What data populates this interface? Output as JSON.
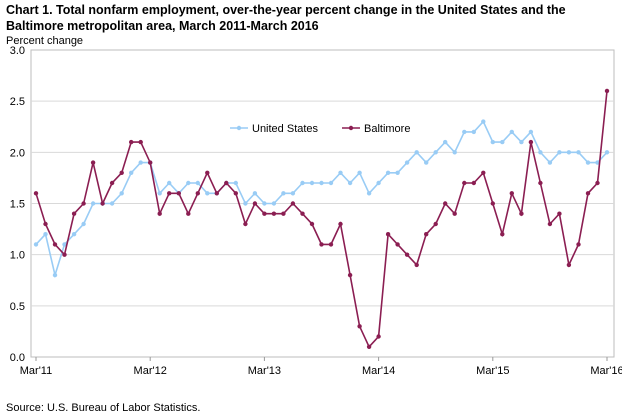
{
  "chart_title_line1": "Chart 1.  Total nonfarm employment, over-the-year percent change in the United States and the",
  "chart_title_line2": "Baltimore metropolitan area, March 2011-March 2016",
  "source": "Source: U.S. Bureau of Labor Statistics.",
  "chart_data": {
    "type": "line",
    "title": "Chart 1.  Total nonfarm employment, over-the-year percent change in the United States and the Baltimore metropolitan area, March 2011-March 2016",
    "ylabel": "Percent change",
    "xlabel": "",
    "ylim": [
      0,
      3.0
    ],
    "yticks": [
      "0.0",
      "0.5",
      "1.0",
      "1.5",
      "2.0",
      "2.5",
      "3.0"
    ],
    "xticks": [
      "Mar'11",
      "Mar'12",
      "Mar'13",
      "Mar'14",
      "Mar'15",
      "Mar'16"
    ],
    "grid": "horizontal",
    "legend_position": "upper-center",
    "months_count": 61,
    "series": [
      {
        "name": "United States",
        "color": "#99ccf5",
        "values": [
          1.1,
          1.2,
          0.8,
          1.1,
          1.2,
          1.3,
          1.5,
          1.5,
          1.5,
          1.6,
          1.8,
          1.9,
          1.9,
          1.6,
          1.7,
          1.6,
          1.7,
          1.7,
          1.6,
          1.6,
          1.7,
          1.7,
          1.5,
          1.6,
          1.5,
          1.5,
          1.6,
          1.6,
          1.7,
          1.7,
          1.7,
          1.7,
          1.8,
          1.7,
          1.8,
          1.6,
          1.7,
          1.8,
          1.8,
          1.9,
          2.0,
          1.9,
          2.0,
          2.1,
          2.0,
          2.2,
          2.2,
          2.3,
          2.1,
          2.1,
          2.2,
          2.1,
          2.2,
          2.0,
          1.9,
          2.0,
          2.0,
          2.0,
          1.9,
          1.9,
          2.0
        ]
      },
      {
        "name": "Baltimore",
        "color": "#8b1e52",
        "values": [
          1.6,
          1.3,
          1.1,
          1.0,
          1.4,
          1.5,
          1.9,
          1.5,
          1.7,
          1.8,
          2.1,
          2.1,
          1.9,
          1.4,
          1.6,
          1.6,
          1.4,
          1.6,
          1.8,
          1.6,
          1.7,
          1.6,
          1.3,
          1.5,
          1.4,
          1.4,
          1.4,
          1.5,
          1.4,
          1.3,
          1.1,
          1.1,
          1.3,
          0.8,
          0.3,
          0.1,
          0.2,
          1.2,
          1.1,
          1.0,
          0.9,
          1.2,
          1.3,
          1.5,
          1.4,
          1.7,
          1.7,
          1.8,
          1.5,
          1.2,
          1.6,
          1.4,
          2.1,
          1.7,
          1.3,
          1.4,
          0.9,
          1.1,
          1.6,
          1.7,
          2.6
        ]
      }
    ]
  }
}
